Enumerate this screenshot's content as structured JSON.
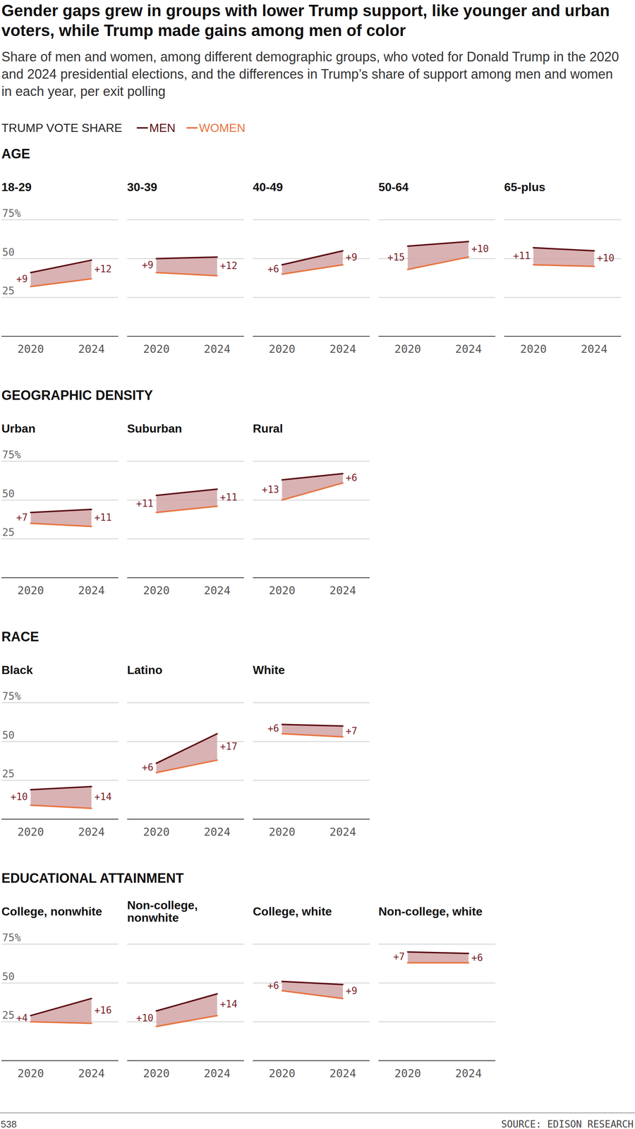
{
  "header": {
    "title": "Gender gaps grew in groups with lower Trump support, like younger and urban voters, while Trump made gains among men of color",
    "subtitle": "Share of men and women, among different demographic groups, who voted for Donald Trump in the 2020 and 2024 presidential elections, and the differences in Trump’s share of support among men and women in each year, per exit polling",
    "legend_title": "TRUMP VOTE SHARE"
  },
  "footer": {
    "credit": "538",
    "source": "SOURCE: EDISON RESEARCH"
  },
  "chart_data": [
    {
      "type": "line",
      "section": "AGE",
      "title": "18-29",
      "categories": [
        "2020",
        "2024"
      ],
      "series": [
        {
          "name": "MEN",
          "color": "#5c0f14",
          "values": [
            41,
            49
          ]
        },
        {
          "name": "WOMEN",
          "color": "#e8743f",
          "values": [
            32,
            37
          ]
        }
      ],
      "gap": {
        "values": [
          9,
          12
        ],
        "value_labels": [
          "+9",
          "+12"
        ]
      },
      "ylim": [
        0,
        75
      ],
      "yticks": [
        25,
        50,
        {
          "value": 75,
          "label": "75%"
        }
      ],
      "grid": true,
      "tick_labels": true
    },
    {
      "type": "line",
      "title": "30-39",
      "categories": [
        "2020",
        "2024"
      ],
      "series": [
        {
          "color": "#5c0f14",
          "values": [
            50,
            51
          ]
        },
        {
          "color": "#e8743f",
          "values": [
            41,
            39
          ]
        }
      ],
      "gap": {
        "values": [
          9,
          12
        ],
        "value_labels": [
          "+9",
          "+12"
        ]
      },
      "ylim": [
        0,
        75
      ],
      "yticks": [
        25,
        50,
        {
          "value": 75,
          "label": "75%"
        }
      ],
      "grid": true,
      "tick_labels": "x"
    },
    {
      "type": "line",
      "title": "40-49",
      "categories": [
        "2020",
        "2024"
      ],
      "series": [
        {
          "color": "#5c0f14",
          "values": [
            46,
            55
          ]
        },
        {
          "color": "#e8743f",
          "values": [
            40,
            46
          ]
        }
      ],
      "gap": {
        "values": [
          6,
          9
        ],
        "value_labels": [
          "+6",
          "+9"
        ]
      },
      "ylim": [
        0,
        75
      ],
      "yticks": [
        25,
        50,
        {
          "value": 75,
          "label": "75%"
        }
      ],
      "grid": true,
      "tick_labels": "x"
    },
    {
      "type": "line",
      "title": "50-64",
      "categories": [
        "2020",
        "2024"
      ],
      "series": [
        {
          "color": "#5c0f14",
          "values": [
            58,
            61
          ]
        },
        {
          "color": "#e8743f",
          "values": [
            43,
            51
          ]
        }
      ],
      "gap": {
        "values": [
          15,
          10
        ],
        "value_labels": [
          "+15",
          "+10"
        ]
      },
      "ylim": [
        0,
        75
      ],
      "yticks": [
        25,
        50,
        {
          "value": 75,
          "label": "75%"
        }
      ],
      "grid": true,
      "tick_labels": "x"
    },
    {
      "type": "line",
      "title": "65-plus",
      "categories": [
        "2020",
        "2024"
      ],
      "series": [
        {
          "color": "#5c0f14",
          "values": [
            57,
            55
          ]
        },
        {
          "color": "#e8743f",
          "values": [
            46,
            45
          ]
        }
      ],
      "gap": {
        "values": [
          11,
          10
        ],
        "value_labels": [
          "+11",
          "+10"
        ]
      },
      "ylim": [
        0,
        75
      ],
      "yticks": [
        25,
        50,
        {
          "value": 75,
          "label": "75%"
        }
      ],
      "grid": true,
      "tick_labels": "x"
    },
    {
      "type": "line",
      "section": "GEOGRAPHIC DENSITY",
      "title": "Urban",
      "categories": [
        "2020",
        "2024"
      ],
      "series": [
        {
          "color": "#5c0f14",
          "values": [
            42,
            44
          ]
        },
        {
          "color": "#e8743f",
          "values": [
            35,
            33
          ]
        }
      ],
      "gap": {
        "values": [
          7,
          11
        ],
        "value_labels": [
          "+7",
          "+11"
        ]
      },
      "ylim": [
        0,
        75
      ],
      "yticks": [
        25,
        50,
        {
          "value": 75,
          "label": "75%"
        }
      ],
      "grid": true,
      "tick_labels": true
    },
    {
      "type": "line",
      "title": "Suburban",
      "categories": [
        "2020",
        "2024"
      ],
      "series": [
        {
          "color": "#5c0f14",
          "values": [
            53,
            57
          ]
        },
        {
          "color": "#e8743f",
          "values": [
            42,
            46
          ]
        }
      ],
      "gap": {
        "values": [
          11,
          11
        ],
        "value_labels": [
          "+11",
          "+11"
        ]
      },
      "ylim": [
        0,
        75
      ],
      "yticks": [
        25,
        50,
        {
          "value": 75,
          "label": "75%"
        }
      ],
      "grid": true,
      "tick_labels": "x"
    },
    {
      "type": "line",
      "title": "Rural",
      "categories": [
        "2020",
        "2024"
      ],
      "series": [
        {
          "color": "#5c0f14",
          "values": [
            63,
            67
          ]
        },
        {
          "color": "#e8743f",
          "values": [
            50,
            61
          ]
        }
      ],
      "gap": {
        "values": [
          13,
          6
        ],
        "value_labels": [
          "+13",
          "+6"
        ]
      },
      "ylim": [
        0,
        75
      ],
      "yticks": [
        25,
        50,
        {
          "value": 75,
          "label": "75%"
        }
      ],
      "grid": true,
      "tick_labels": "x"
    },
    {
      "type": "line",
      "section": "RACE",
      "title": "Black",
      "categories": [
        "2020",
        "2024"
      ],
      "series": [
        {
          "color": "#5c0f14",
          "values": [
            19,
            21
          ]
        },
        {
          "color": "#e8743f",
          "values": [
            9,
            7
          ]
        }
      ],
      "gap": {
        "values": [
          10,
          14
        ],
        "value_labels": [
          "+10",
          "+14"
        ]
      },
      "ylim": [
        0,
        75
      ],
      "yticks": [
        25,
        50,
        {
          "value": 75,
          "label": "75%"
        }
      ],
      "grid": true,
      "tick_labels": true
    },
    {
      "type": "line",
      "title": "Latino",
      "categories": [
        "2020",
        "2024"
      ],
      "series": [
        {
          "color": "#5c0f14",
          "values": [
            36,
            55
          ]
        },
        {
          "color": "#e8743f",
          "values": [
            30,
            38
          ]
        }
      ],
      "gap": {
        "values": [
          6,
          17
        ],
        "value_labels": [
          "+6",
          "+17"
        ]
      },
      "ylim": [
        0,
        75
      ],
      "yticks": [
        25,
        50,
        {
          "value": 75,
          "label": "75%"
        }
      ],
      "grid": true,
      "tick_labels": "x"
    },
    {
      "type": "line",
      "title": "White",
      "categories": [
        "2020",
        "2024"
      ],
      "series": [
        {
          "color": "#5c0f14",
          "values": [
            61,
            60
          ]
        },
        {
          "color": "#e8743f",
          "values": [
            55,
            53
          ]
        }
      ],
      "gap": {
        "values": [
          6,
          7
        ],
        "value_labels": [
          "+6",
          "+7"
        ]
      },
      "ylim": [
        0,
        75
      ],
      "yticks": [
        25,
        50,
        {
          "value": 75,
          "label": "75%"
        }
      ],
      "grid": true,
      "tick_labels": "x"
    },
    {
      "type": "line",
      "section": "EDUCATIONAL ATTAINMENT",
      "title": "College, nonwhite",
      "categories": [
        "2020",
        "2024"
      ],
      "series": [
        {
          "color": "#5c0f14",
          "values": [
            29,
            40
          ]
        },
        {
          "color": "#e8743f",
          "values": [
            25,
            24
          ]
        }
      ],
      "gap": {
        "values": [
          4,
          16
        ],
        "value_labels": [
          "+4",
          "+16"
        ]
      },
      "ylim": [
        0,
        75
      ],
      "yticks": [
        25,
        50,
        {
          "value": 75,
          "label": "75%"
        }
      ],
      "grid": true,
      "tick_labels": true
    },
    {
      "type": "line",
      "title": "Non-college, nonwhite",
      "categories": [
        "2020",
        "2024"
      ],
      "series": [
        {
          "color": "#5c0f14",
          "values": [
            32,
            43
          ]
        },
        {
          "color": "#e8743f",
          "values": [
            22,
            29
          ]
        }
      ],
      "gap": {
        "values": [
          10,
          14
        ],
        "value_labels": [
          "+10",
          "+14"
        ]
      },
      "ylim": [
        0,
        75
      ],
      "yticks": [
        25,
        50,
        {
          "value": 75,
          "label": "75%"
        }
      ],
      "grid": true,
      "tick_labels": "x"
    },
    {
      "type": "line",
      "title": "College, white",
      "categories": [
        "2020",
        "2024"
      ],
      "series": [
        {
          "color": "#5c0f14",
          "values": [
            51,
            49
          ]
        },
        {
          "color": "#e8743f",
          "values": [
            45,
            40
          ]
        }
      ],
      "gap": {
        "values": [
          6,
          9
        ],
        "value_labels": [
          "+6",
          "+9"
        ]
      },
      "ylim": [
        0,
        75
      ],
      "yticks": [
        25,
        50,
        {
          "value": 75,
          "label": "75%"
        }
      ],
      "grid": true,
      "tick_labels": "x"
    },
    {
      "type": "line",
      "title": "Non-college, white",
      "categories": [
        "2020",
        "2024"
      ],
      "series": [
        {
          "color": "#5c0f14",
          "values": [
            70,
            69
          ]
        },
        {
          "color": "#e8743f",
          "values": [
            63,
            63
          ]
        }
      ],
      "gap": {
        "values": [
          7,
          6
        ],
        "value_labels": [
          "+7",
          "+6"
        ]
      },
      "ylim": [
        0,
        75
      ],
      "yticks": [
        25,
        50,
        {
          "value": 75,
          "label": "75%"
        }
      ],
      "grid": true,
      "tick_labels": "x"
    }
  ]
}
